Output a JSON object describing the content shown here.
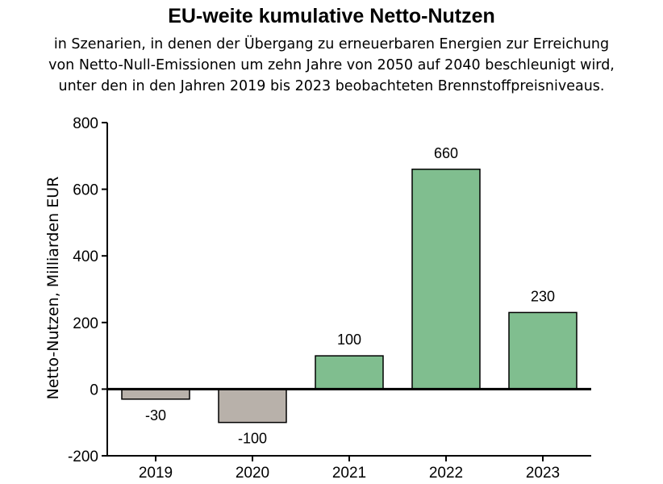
{
  "title": "EU-weite kumulative Netto-Nutzen",
  "subtitle_lines": [
    "in Szenarien, in denen der Übergang zu erneuerbaren Energien zur Erreichung",
    "von Netto-Null-Emissionen um zehn Jahre von 2050 auf 2040 beschleunigt wird,",
    "unter den in den Jahren 2019 bis 2023 beobachteten Brennstoffpreisniveaus."
  ],
  "chart_data": {
    "type": "bar",
    "title": "EU-weite kumulative Netto-Nutzen",
    "xlabel": "",
    "ylabel": "Netto-Nutzen, Milliarden EUR",
    "categories": [
      "2019",
      "2020",
      "2021",
      "2022",
      "2023"
    ],
    "values": [
      -30,
      -100,
      100,
      660,
      230
    ],
    "value_labels": [
      "-30",
      "-100",
      "100",
      "660",
      "230"
    ],
    "ylim": [
      -200,
      800
    ],
    "yticks": [
      800,
      600,
      400,
      200,
      0,
      -200
    ],
    "ytick_labels": [
      "800",
      "600",
      "400",
      "200",
      "0",
      "-200"
    ],
    "grid": false,
    "colors": {
      "positive": "#80be8f",
      "negative": "#b8b1aa",
      "border": "#000000"
    }
  }
}
